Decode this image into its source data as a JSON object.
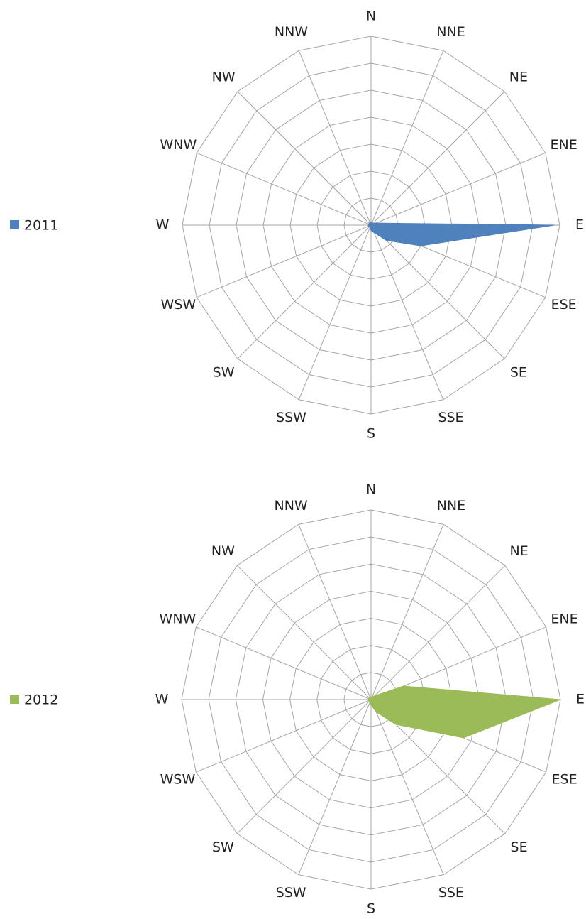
{
  "chart_data": [
    {
      "type": "radar",
      "categories": [
        "N",
        "NNE",
        "NE",
        "ENE",
        "E",
        "ESE",
        "SE",
        "SSE",
        "S",
        "SSW",
        "SW",
        "WSW",
        "W",
        "WNW",
        "NW",
        "NNW"
      ],
      "series": [
        {
          "name": "2011",
          "color": "#4f81bd",
          "values": [
            0.1,
            0.1,
            0.1,
            0.2,
            6.8,
            2.0,
            0.8,
            0.3,
            0.2,
            0.1,
            0.1,
            0.1,
            0.1,
            0.1,
            0.1,
            0.1
          ]
        }
      ],
      "ylim": [
        0,
        7
      ],
      "yticks": [
        1,
        2,
        3,
        4,
        5,
        6,
        7
      ],
      "grid": true,
      "legend": "left"
    },
    {
      "type": "radar",
      "categories": [
        "N",
        "NNE",
        "NE",
        "ENE",
        "E",
        "ESE",
        "SE",
        "SSE",
        "S",
        "SSW",
        "SW",
        "WSW",
        "W",
        "WNW",
        "NW",
        "NNW"
      ],
      "series": [
        {
          "name": "2012",
          "color": "#9bbb59",
          "values": [
            0.1,
            0.1,
            0.2,
            1.3,
            7,
            3.7,
            1.3,
            0.5,
            0.2,
            0.1,
            0.1,
            0.1,
            0.1,
            0.1,
            0.1,
            0.1
          ]
        }
      ],
      "ylim": [
        0,
        7
      ],
      "yticks": [
        1,
        2,
        3,
        4,
        5,
        6,
        7
      ],
      "grid": true,
      "legend": "left"
    }
  ]
}
